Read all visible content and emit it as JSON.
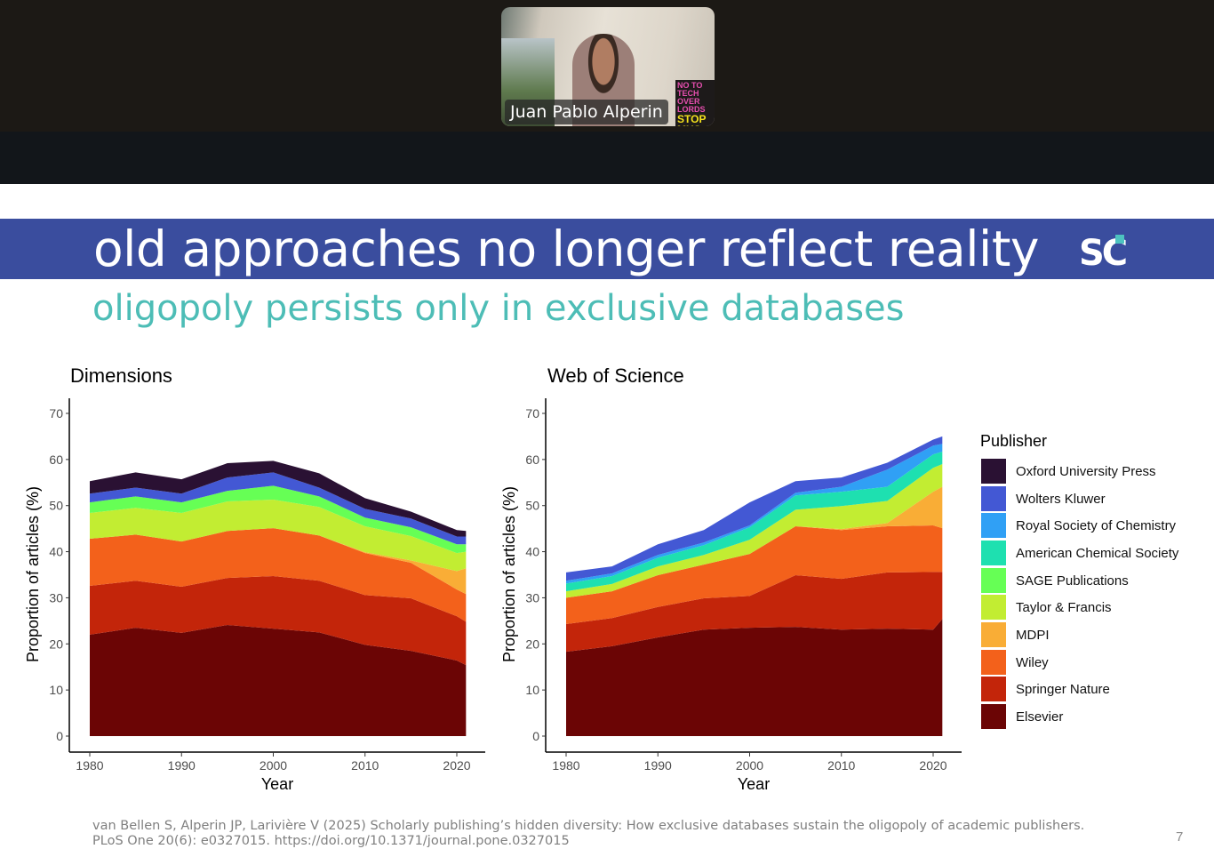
{
  "video_call": {
    "participant_name": "Juan Pablo Alperin",
    "poster_text": "NO TO TECH OVER LORDS",
    "poster_text2": "STOP MUS"
  },
  "slide": {
    "title": "old approaches no longer reflect reality",
    "subtitle": "oligopoly persists only in exclusive databases",
    "logo_text": "SC",
    "citation": "van Bellen S, Alperin JP, Larivière V (2025) Scholarly publishing’s hidden diversity: How exclusive databases sustain the oligopoly of academic publishers. PLoS One 20(6): e0327015. https://doi.org/10.1371/journal.pone.0327015",
    "page_number": "7",
    "colors": {
      "banner": "#3a4d9e",
      "subtitle": "#4dbdb6",
      "logo_accent": "#4dc3c0"
    }
  },
  "legend": {
    "title": "Publisher",
    "items": [
      {
        "label": "Oxford University Press",
        "color": "#2a1133"
      },
      {
        "label": "Wolters Kluwer",
        "color": "#4358d4"
      },
      {
        "label": "Royal Society of Chemistry",
        "color": "#30a0f5"
      },
      {
        "label": "American Chemical Society",
        "color": "#1ee0b0"
      },
      {
        "label": "SAGE Publications",
        "color": "#66ff55"
      },
      {
        "label": "Taylor & Francis",
        "color": "#c2ed32"
      },
      {
        "label": "MDPI",
        "color": "#f9ad36"
      },
      {
        "label": "Wiley",
        "color": "#f3611b"
      },
      {
        "label": "Springer Nature",
        "color": "#c3250a"
      },
      {
        "label": "Elsevier",
        "color": "#6b0505"
      }
    ]
  },
  "chart_data": [
    {
      "type": "area",
      "stacked": true,
      "title": "Dimensions",
      "xlabel": "Year",
      "ylabel": "Proportion of articles (%)",
      "xlim": [
        1980,
        2021
      ],
      "ylim": [
        0,
        70
      ],
      "xticks": [
        1980,
        1990,
        2000,
        2010,
        2020
      ],
      "yticks": [
        0,
        10,
        20,
        30,
        40,
        50,
        60,
        70
      ],
      "grid": false,
      "legend": "right",
      "x": [
        1980,
        1985,
        1990,
        1995,
        2000,
        2005,
        2010,
        2015,
        2020,
        2021
      ],
      "series": [
        {
          "name": "Elsevier",
          "values": [
            22,
            23.5,
            22.4,
            24.1,
            23.3,
            22.5,
            19.8,
            18.5,
            16.4,
            15.4
          ]
        },
        {
          "name": "Springer Nature",
          "values": [
            10.6,
            10.2,
            10,
            10.2,
            11.4,
            11.2,
            10.8,
            11.4,
            9.6,
            9.4
          ]
        },
        {
          "name": "Wiley",
          "values": [
            10.2,
            10,
            9.8,
            10.2,
            10.4,
            9.8,
            9.1,
            7.7,
            5.8,
            6
          ]
        },
        {
          "name": "MDPI",
          "values": [
            0,
            0,
            0,
            0,
            0,
            0,
            0.2,
            0.5,
            4,
            5.6
          ]
        },
        {
          "name": "Taylor & Francis",
          "values": [
            5.6,
            5.8,
            6.2,
            6.4,
            6.2,
            6.2,
            5.6,
            5.3,
            3.9,
            3.6
          ]
        },
        {
          "name": "SAGE Publications",
          "values": [
            2.3,
            2.5,
            2.3,
            2.3,
            3,
            2.3,
            1.9,
            1.9,
            1.9,
            1.6
          ]
        },
        {
          "name": "American Chemical Society",
          "values": [
            0,
            0,
            0,
            0,
            0,
            0,
            0,
            0,
            0,
            0
          ]
        },
        {
          "name": "Royal Society of Chemistry",
          "values": [
            0,
            0,
            0,
            0,
            0,
            0,
            0,
            0,
            0,
            0
          ]
        },
        {
          "name": "Wolters Kluwer",
          "values": [
            1.9,
            1.9,
            1.9,
            2.9,
            2.9,
            1.9,
            1.9,
            1.9,
            1.7,
            1.7
          ]
        },
        {
          "name": "Oxford University Press",
          "values": [
            2.7,
            3.3,
            3.1,
            3.1,
            2.5,
            3.1,
            2.3,
            1.5,
            1.4,
            1.2
          ]
        }
      ]
    },
    {
      "type": "area",
      "stacked": true,
      "title": "Web of Science",
      "xlabel": "Year",
      "ylabel": "Proportion of articles (%)",
      "xlim": [
        1980,
        2021
      ],
      "ylim": [
        0,
        70
      ],
      "xticks": [
        1980,
        1990,
        2000,
        2010,
        2020
      ],
      "yticks": [
        0,
        10,
        20,
        30,
        40,
        50,
        60,
        70
      ],
      "grid": false,
      "legend": "right",
      "x": [
        1980,
        1985,
        1990,
        1995,
        2000,
        2005,
        2010,
        2015,
        2020,
        2021
      ],
      "series": [
        {
          "name": "Elsevier",
          "values": [
            18.3,
            19.5,
            21.4,
            23.1,
            23.5,
            23.7,
            23.1,
            23.3,
            23.1,
            25.4
          ]
        },
        {
          "name": "Springer Nature",
          "values": [
            6,
            6.1,
            6.6,
            6.8,
            6.9,
            11.2,
            11,
            12.2,
            12.5,
            10.2
          ]
        },
        {
          "name": "Wiley",
          "values": [
            5.7,
            5.8,
            6.9,
            7.3,
            9.1,
            10.6,
            10.6,
            10,
            10.1,
            9.5
          ]
        },
        {
          "name": "MDPI",
          "values": [
            0,
            0,
            0,
            0,
            0,
            0,
            0.2,
            0.7,
            7.3,
            9
          ]
        },
        {
          "name": "Taylor & Francis",
          "values": [
            1.4,
            1.6,
            1.9,
            2.1,
            3.1,
            3.6,
            5,
            4.8,
            5.2,
            4.9
          ]
        },
        {
          "name": "SAGE Publications",
          "values": [
            0,
            0,
            0,
            0,
            0,
            0,
            0,
            0,
            0,
            0
          ]
        },
        {
          "name": "American Chemical Society",
          "values": [
            1.7,
            1.7,
            1.9,
            2.1,
            2.7,
            3.1,
            3.1,
            3.1,
            2.9,
            2.7
          ]
        },
        {
          "name": "Royal Society of Chemistry",
          "values": [
            0.6,
            0.6,
            0.6,
            0.6,
            0.4,
            0.6,
            1.1,
            3.7,
            1.9,
            1.7
          ]
        },
        {
          "name": "Wolters Kluwer",
          "values": [
            1.8,
            1.5,
            2.3,
            2.7,
            5,
            2.5,
            2,
            1.5,
            1.3,
            1.6
          ]
        },
        {
          "name": "Oxford University Press",
          "values": [
            0,
            0,
            0,
            0,
            0,
            0,
            0,
            0,
            0,
            0
          ]
        }
      ]
    }
  ]
}
